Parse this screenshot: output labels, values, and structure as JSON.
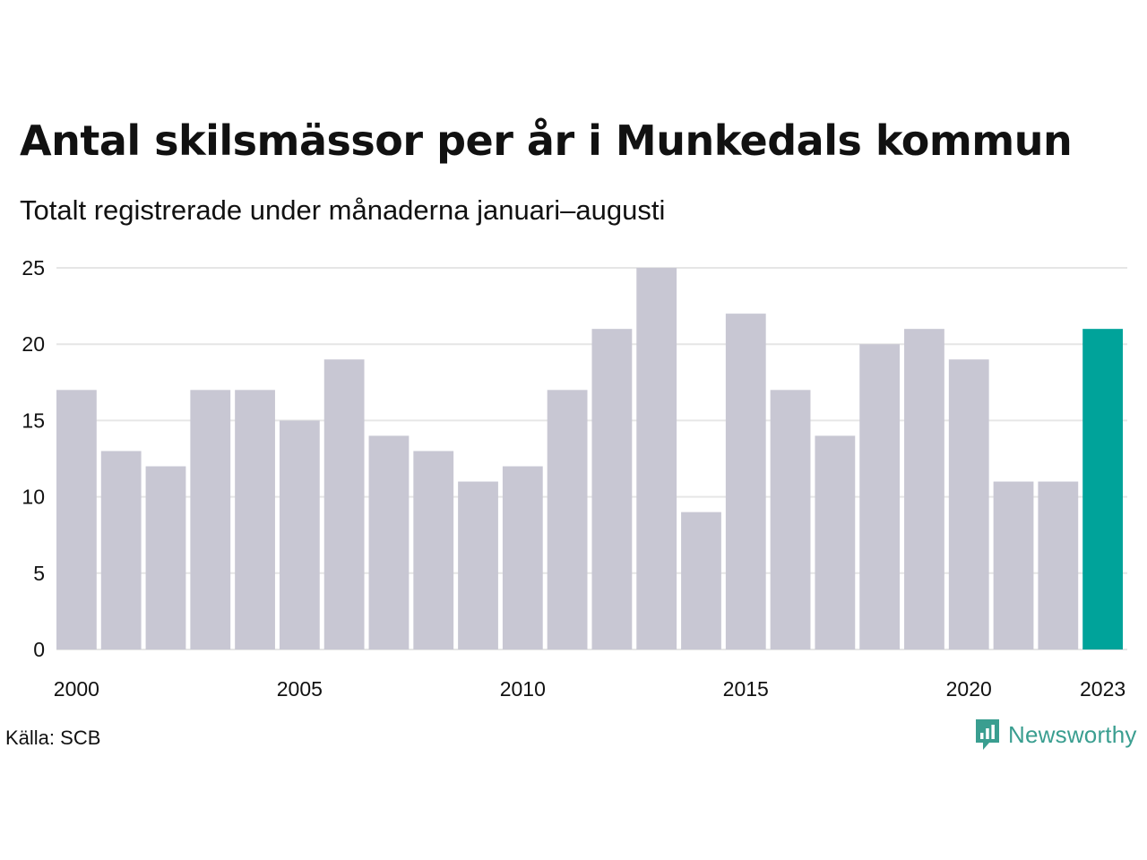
{
  "title": "Antal skilsmässor per år i Munkedals kommun",
  "subtitle": "Totalt registrerade under månaderna januari–augusti",
  "source": "Källa: SCB",
  "brand": "Newsworthy",
  "colors": {
    "bar_default": "#c8c7d3",
    "bar_highlight": "#00a39a",
    "grid": "#e6e6e6",
    "brand": "#3a9e90"
  },
  "chart_data": {
    "type": "bar",
    "categories": [
      "2000",
      "2001",
      "2002",
      "2003",
      "2004",
      "2005",
      "2006",
      "2007",
      "2008",
      "2009",
      "2010",
      "2011",
      "2012",
      "2013",
      "2014",
      "2015",
      "2016",
      "2017",
      "2018",
      "2019",
      "2020",
      "2021",
      "2022",
      "2023"
    ],
    "values": [
      17,
      13,
      12,
      17,
      17,
      15,
      19,
      14,
      13,
      11,
      12,
      17,
      21,
      25,
      9,
      22,
      17,
      14,
      20,
      21,
      19,
      11,
      11,
      21
    ],
    "highlight_category": "2023",
    "x_tick_labels": [
      "2000",
      "2005",
      "2010",
      "2015",
      "2020",
      "2023"
    ],
    "y_ticks": [
      0,
      5,
      10,
      15,
      20,
      25
    ],
    "ylim": [
      0,
      25
    ],
    "xlabel": "",
    "ylabel": "",
    "grid": true,
    "legend": "none"
  }
}
